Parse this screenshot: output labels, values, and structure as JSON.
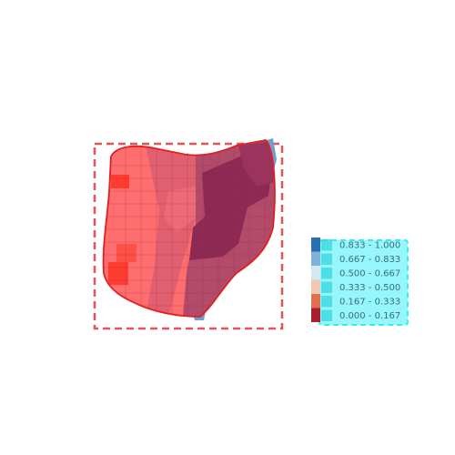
{
  "map": {
    "overlay_title": "",
    "legend_title": "",
    "colors": {
      "frame": "#e05555",
      "outline": "#e02020",
      "water": "#6f9fc8",
      "highlight": "#2ef0f5"
    },
    "shades": {
      "light": "#ff6e6e",
      "mid": "#e06070",
      "dark": "#b24a6a",
      "darkest": "#8c2a55",
      "hot": "#ff3b2e"
    }
  },
  "legend": {
    "items": [
      {
        "label": "0.833 - 1.000",
        "swatch": "#2a6fb0"
      },
      {
        "label": "0.667 - 0.833",
        "swatch": "#7fb2d6"
      },
      {
        "label": "0.500 - 0.667",
        "swatch": "#d8e8f0"
      },
      {
        "label": "0.333 - 0.500",
        "swatch": "#f2c8b4"
      },
      {
        "label": "0.167 - 0.333",
        "swatch": "#e07050"
      },
      {
        "label": "0.000 - 0.167",
        "swatch": "#a8202e"
      }
    ]
  }
}
